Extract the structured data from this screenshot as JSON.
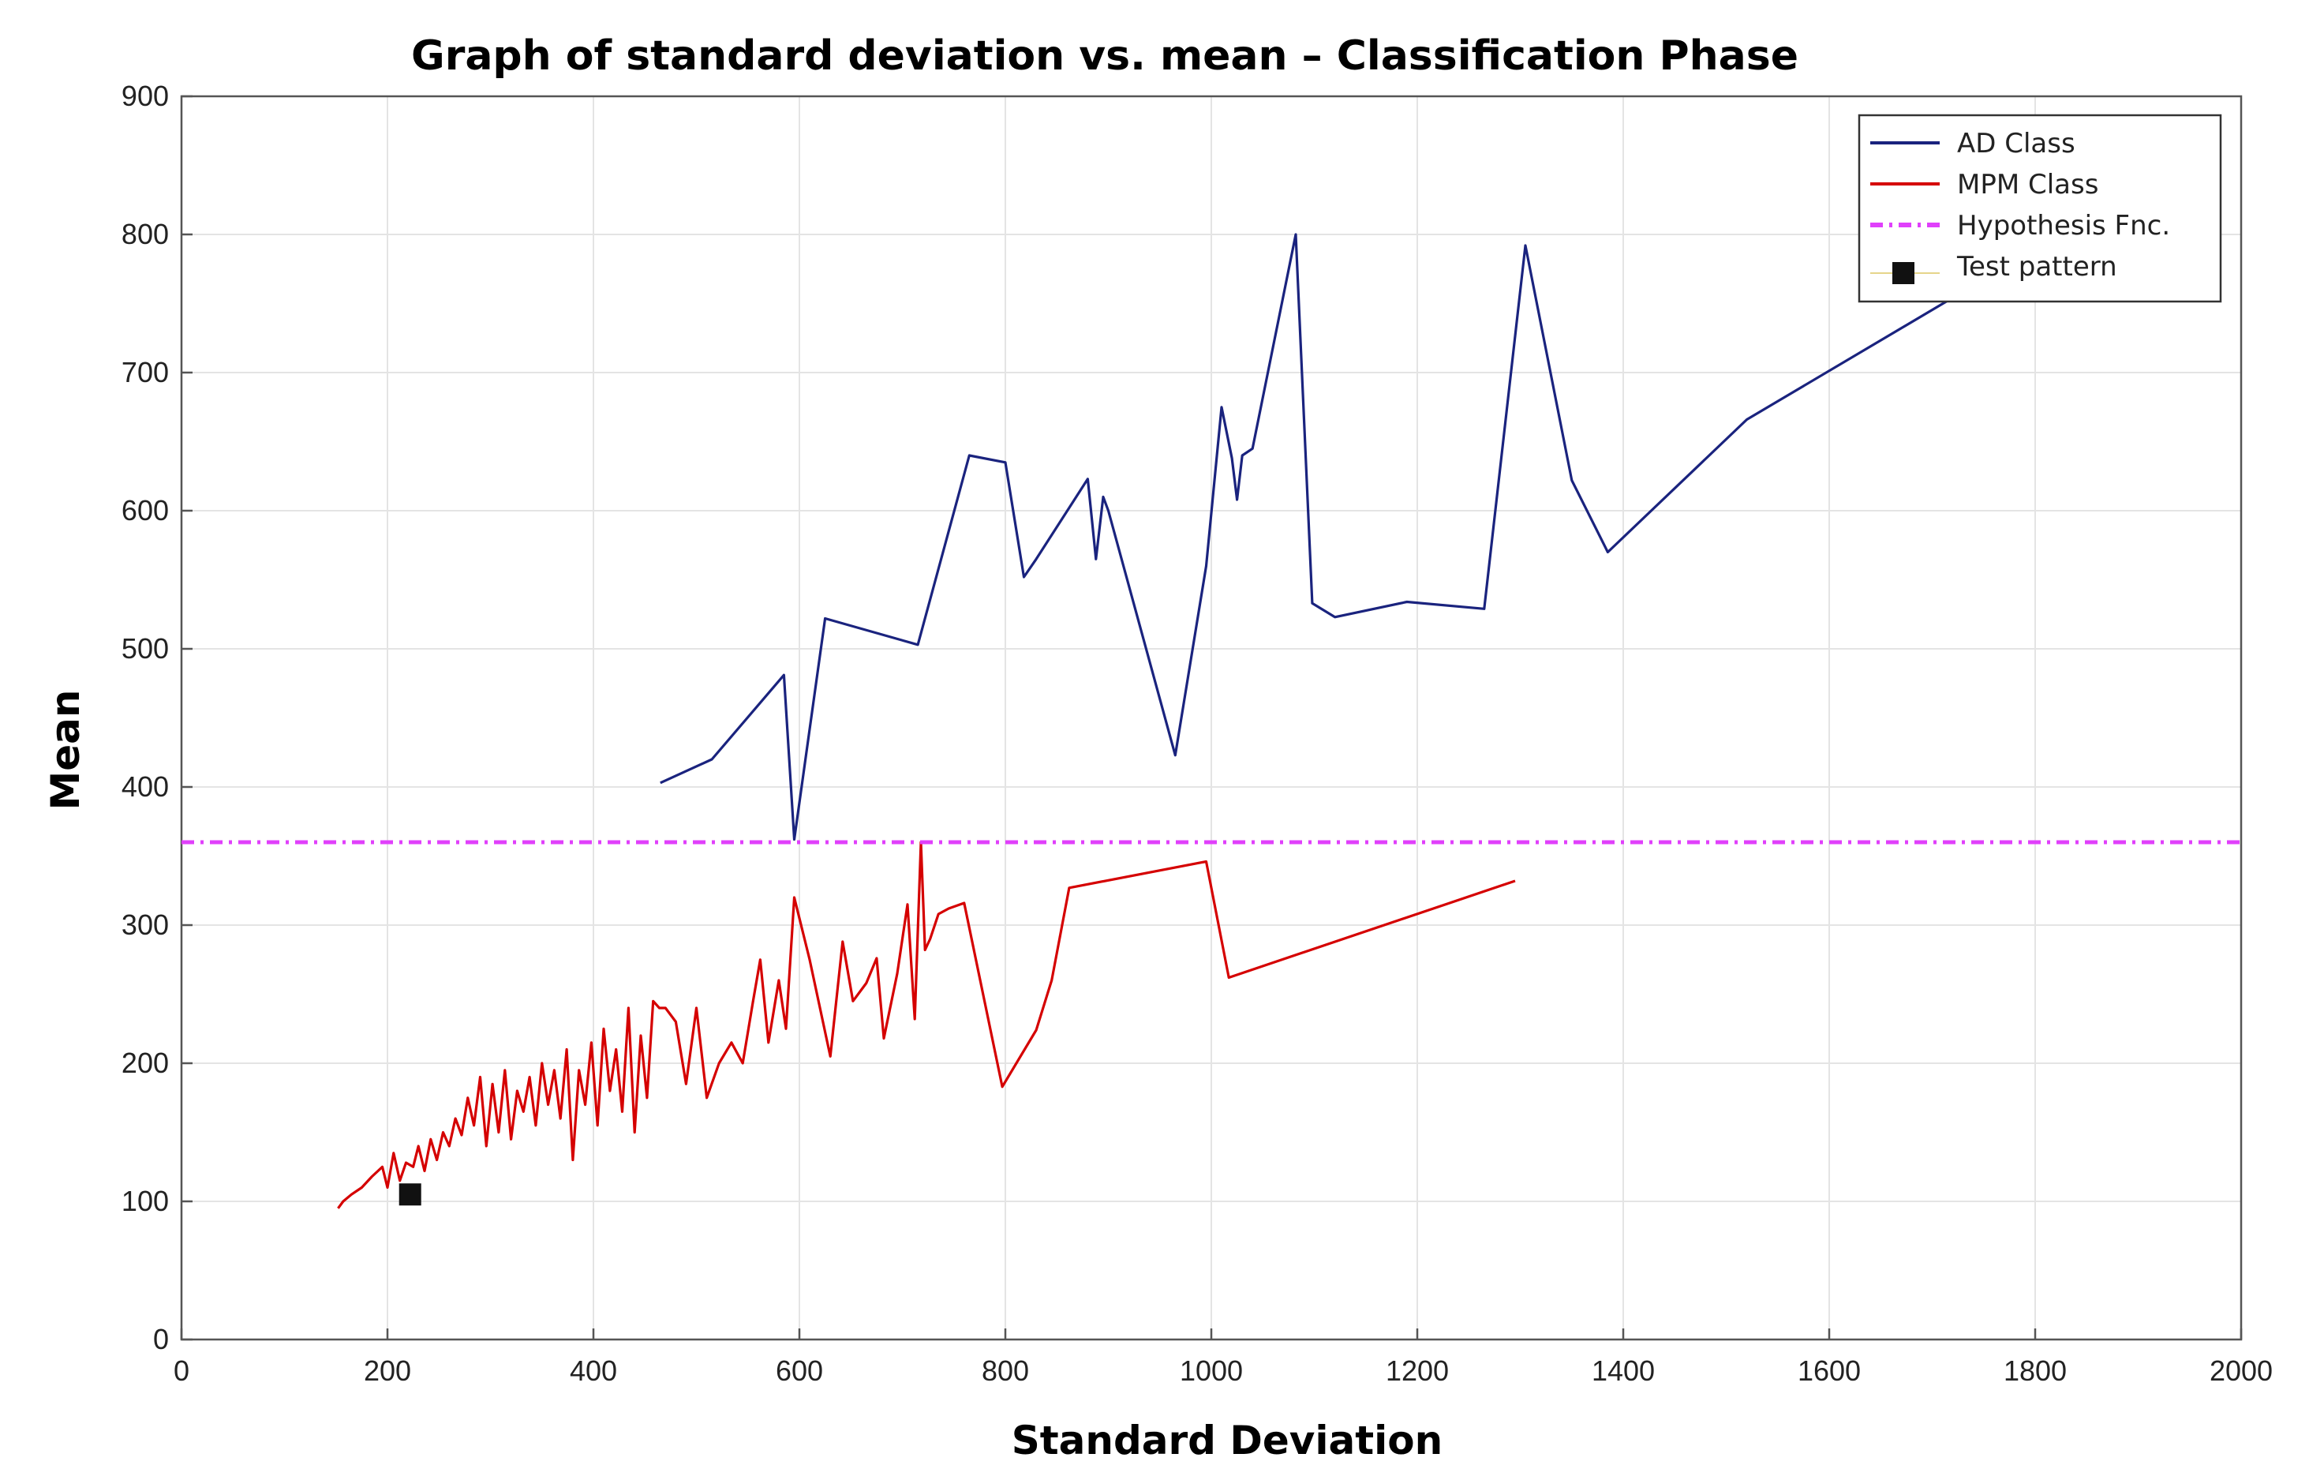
{
  "chart_data": {
    "type": "line",
    "title": "Graph of standard deviation vs. mean – Classification Phase",
    "xlabel": "Standard Deviation",
    "ylabel": "Mean",
    "xlim": [
      0,
      2000
    ],
    "ylim": [
      0,
      900
    ],
    "xticks": [
      0,
      200,
      400,
      600,
      800,
      1000,
      1200,
      1400,
      1600,
      1800,
      2000
    ],
    "yticks": [
      0,
      100,
      200,
      300,
      400,
      500,
      600,
      700,
      800,
      900
    ],
    "grid": true,
    "legend_position": "top-right",
    "colors": {
      "ad": "#1a237e",
      "mpm": "#d50000",
      "hypothesis": "#e040fb",
      "test": "#111111"
    },
    "series": [
      {
        "name": "AD Class",
        "style": "solid",
        "x": [
          465,
          515,
          585,
          595,
          625,
          715,
          765,
          800,
          818,
          830,
          880,
          888,
          895,
          900,
          965,
          995,
          1010,
          1020,
          1025,
          1030,
          1040,
          1082,
          1098,
          1120,
          1190,
          1265,
          1305,
          1350,
          1385,
          1520,
          1715
        ],
        "y": [
          403,
          420,
          481,
          362,
          522,
          503,
          640,
          635,
          552,
          565,
          623,
          565,
          610,
          600,
          423,
          560,
          675,
          638,
          608,
          640,
          645,
          800,
          533,
          523,
          534,
          529,
          792,
          622,
          570,
          666,
          752
        ]
      },
      {
        "name": "MPM Class",
        "style": "solid",
        "x": [
          152,
          157,
          165,
          175,
          185,
          195,
          200,
          206,
          212,
          218,
          225,
          230,
          236,
          242,
          248,
          254,
          260,
          266,
          272,
          278,
          284,
          290,
          296,
          302,
          308,
          314,
          320,
          326,
          332,
          338,
          344,
          350,
          356,
          362,
          368,
          374,
          380,
          386,
          392,
          398,
          404,
          410,
          416,
          422,
          428,
          434,
          440,
          446,
          452,
          458,
          464,
          470,
          480,
          490,
          500,
          510,
          522,
          534,
          545,
          555,
          562,
          570,
          580,
          587,
          595,
          610,
          630,
          642,
          652,
          665,
          675,
          682,
          695,
          705,
          712,
          718,
          722,
          727,
          735,
          745,
          760,
          797,
          830,
          845,
          862,
          995,
          1017,
          1295
        ],
        "y": [
          95,
          100,
          105,
          110,
          118,
          125,
          110,
          135,
          115,
          128,
          125,
          140,
          122,
          145,
          130,
          150,
          140,
          160,
          148,
          175,
          155,
          190,
          140,
          185,
          150,
          195,
          145,
          180,
          165,
          190,
          155,
          200,
          170,
          195,
          160,
          210,
          130,
          195,
          170,
          215,
          155,
          225,
          180,
          210,
          165,
          240,
          150,
          220,
          175,
          245,
          240,
          240,
          230,
          185,
          240,
          175,
          200,
          215,
          200,
          245,
          275,
          215,
          260,
          225,
          320,
          275,
          205,
          288,
          245,
          258,
          276,
          218,
          265,
          315,
          232,
          360,
          282,
          290,
          308,
          312,
          316,
          183,
          224,
          260,
          327,
          346,
          262,
          332
        ]
      },
      {
        "name": "Hypothesis Fnc.",
        "style": "dash-dot",
        "x": [
          0,
          2000
        ],
        "y": [
          360,
          360
        ]
      },
      {
        "name": "Test pattern",
        "style": "marker",
        "x": [
          222
        ],
        "y": [
          105
        ]
      }
    ]
  }
}
